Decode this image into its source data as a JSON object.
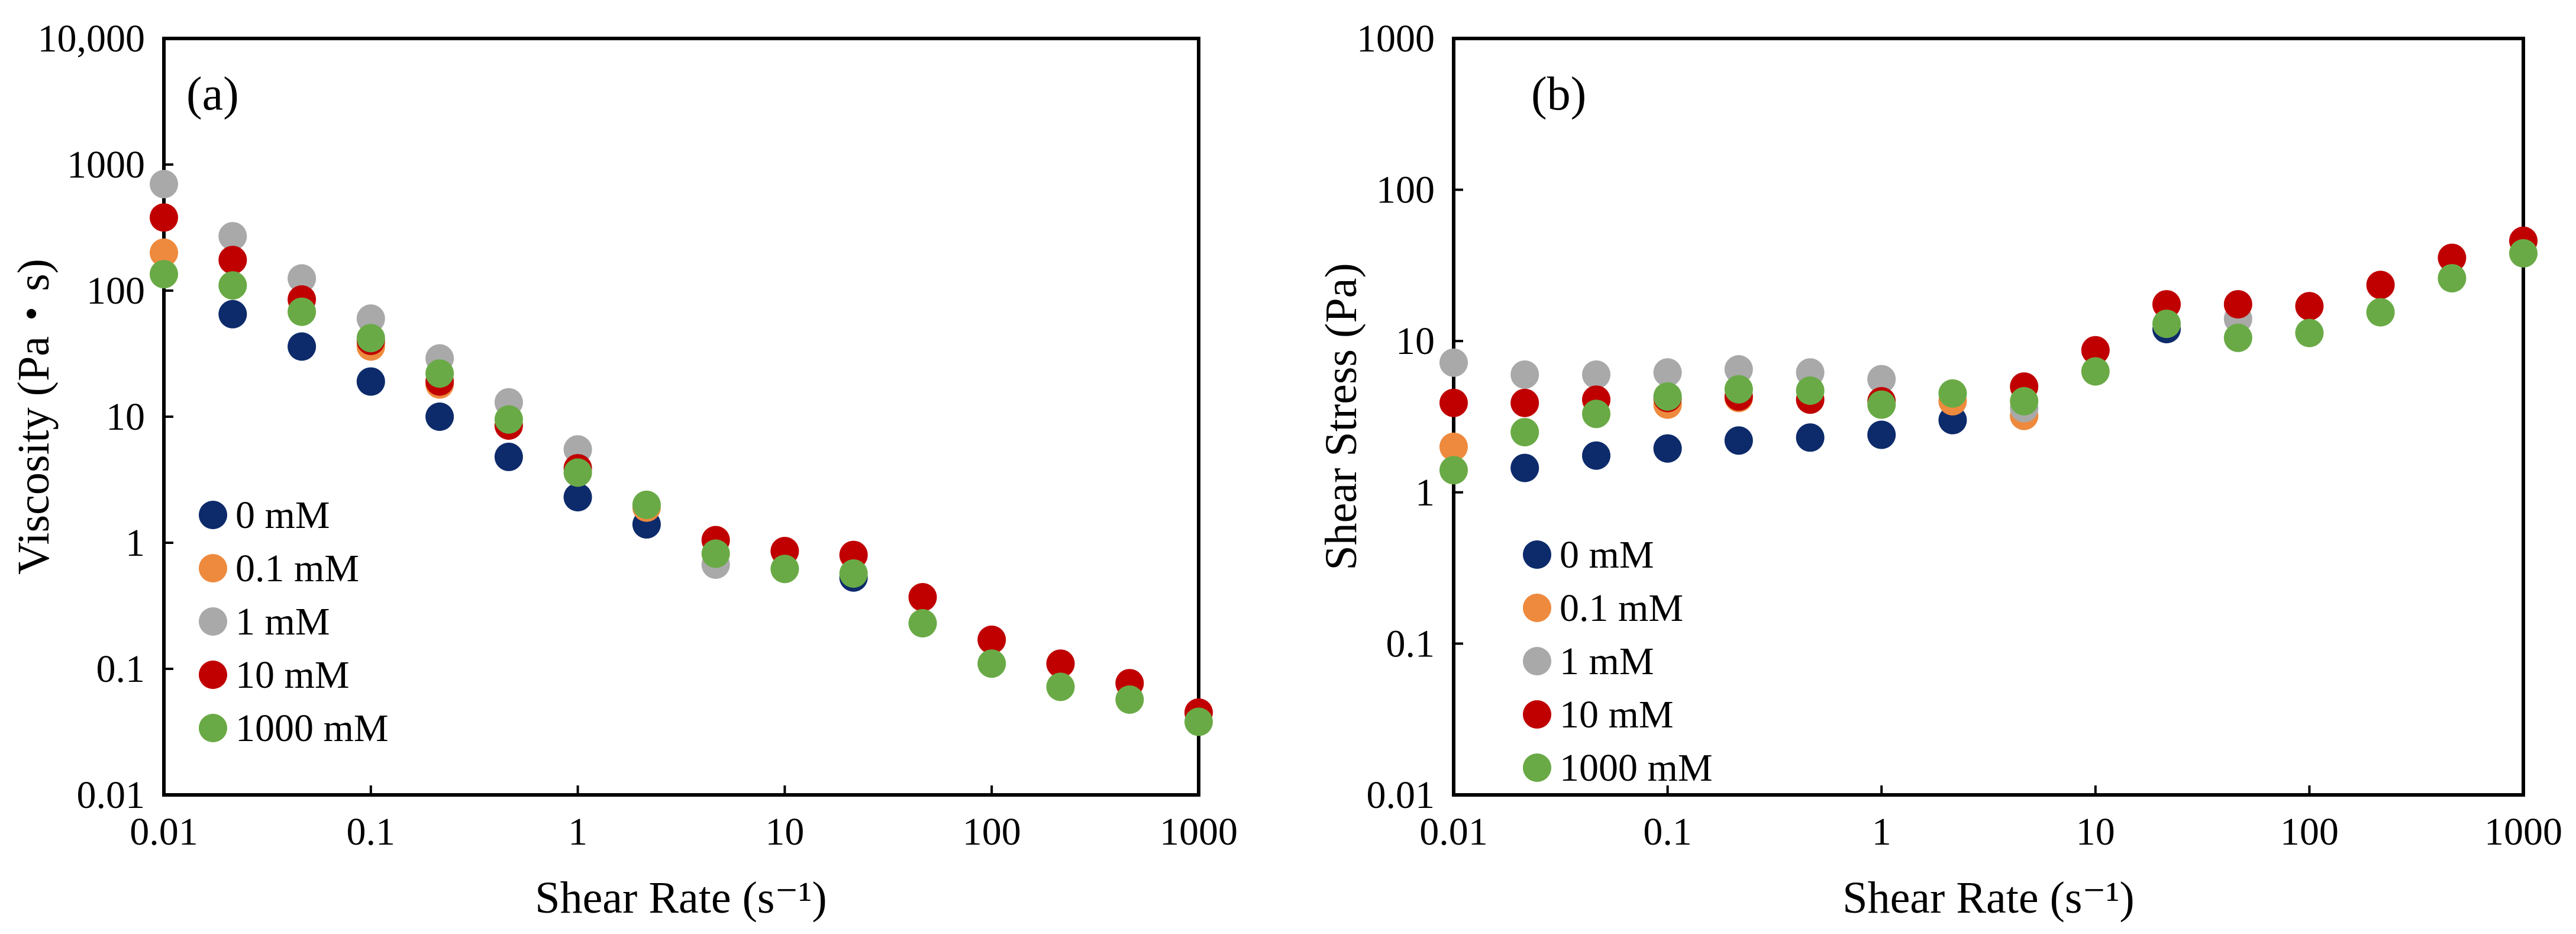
{
  "chart_data": [
    {
      "type": "scatter",
      "panel_label": "(a)",
      "xlabel": "Shear Rate (s⁻¹)",
      "ylabel": "Viscosity (Pa・s)",
      "xscale": "log",
      "yscale": "log",
      "xlim": [
        0.01,
        1000
      ],
      "ylim": [
        0.01,
        10000
      ],
      "x_tick_labels": [
        "0.01",
        "0.1",
        "1",
        "10",
        "100",
        "1000"
      ],
      "y_tick_labels": [
        "0.01",
        "0.1",
        "1",
        "10",
        "100",
        "1000",
        "10,000"
      ],
      "legend_position": "bottom-left",
      "x": [
        0.01,
        0.0215,
        0.0464,
        0.1,
        0.215,
        0.464,
        1,
        2.15,
        4.64,
        10,
        21.5,
        46.4,
        100,
        215,
        464,
        1000
      ],
      "series": [
        {
          "name": "0 mM",
          "color": "#0d2b6b",
          "values": [
            null,
            65,
            36,
            19,
            10,
            4.8,
            2.3,
            1.4,
            null,
            null,
            0.53,
            null,
            null,
            null,
            null,
            null
          ]
        },
        {
          "name": "0.1 mM",
          "color": "#ee8a3e",
          "values": [
            200,
            null,
            null,
            36,
            18,
            null,
            null,
            1.9,
            null,
            null,
            null,
            null,
            null,
            null,
            null,
            null
          ]
        },
        {
          "name": "1 mM",
          "color": "#a9a9a9",
          "values": [
            700,
            270,
            125,
            60,
            29,
            13,
            5.5,
            null,
            0.67,
            null,
            null,
            null,
            null,
            null,
            null,
            null
          ]
        },
        {
          "name": "10 mM",
          "color": "#c00000",
          "values": [
            380,
            175,
            85,
            40,
            19,
            8.5,
            3.9,
            null,
            1.05,
            0.86,
            0.8,
            0.37,
            0.17,
            0.11,
            0.077,
            0.045
          ]
        },
        {
          "name": "1000 mM",
          "color": "#6aaa46",
          "values": [
            135,
            110,
            68,
            42,
            22,
            9.5,
            3.6,
            2.0,
            0.82,
            0.62,
            0.57,
            0.23,
            0.11,
            0.072,
            0.057,
            0.038
          ]
        }
      ]
    },
    {
      "type": "scatter",
      "panel_label": "(b)",
      "xlabel": "Shear Rate (s⁻¹)",
      "ylabel": "Shear Stress (Pa)",
      "xscale": "log",
      "yscale": "log",
      "xlim": [
        0.01,
        1000
      ],
      "ylim": [
        0.01,
        1000
      ],
      "x_tick_labels": [
        "0.01",
        "0.1",
        "1",
        "10",
        "100",
        "1000"
      ],
      "y_tick_labels": [
        "0.01",
        "0.1",
        "1",
        "10",
        "100",
        "1000"
      ],
      "legend_position": "bottom-left",
      "x": [
        0.01,
        0.0215,
        0.0464,
        0.1,
        0.215,
        0.464,
        1,
        2.15,
        4.64,
        10,
        21.5,
        46.4,
        100,
        215,
        464,
        1000
      ],
      "series": [
        {
          "name": "0 mM",
          "color": "#0d2b6b",
          "values": [
            null,
            1.45,
            1.75,
            1.95,
            2.2,
            2.3,
            2.4,
            3.0,
            null,
            null,
            12,
            null,
            null,
            null,
            null,
            null
          ]
        },
        {
          "name": "0.1 mM",
          "color": "#ee8a3e",
          "values": [
            2.0,
            null,
            null,
            3.8,
            4.2,
            null,
            null,
            4.0,
            3.2,
            null,
            null,
            null,
            null,
            null,
            null,
            null
          ]
        },
        {
          "name": "1 mM",
          "color": "#a9a9a9",
          "values": [
            7.2,
            6.0,
            6.0,
            6.2,
            6.5,
            6.2,
            5.6,
            null,
            3.6,
            null,
            null,
            14,
            null,
            null,
            null,
            null
          ]
        },
        {
          "name": "10 mM",
          "color": "#c00000",
          "values": [
            3.9,
            3.9,
            4.1,
            4.2,
            4.3,
            4.1,
            4.0,
            null,
            5.0,
            8.7,
            17.5,
            17.5,
            17,
            23.5,
            35.5,
            46
          ]
        },
        {
          "name": "1000 mM",
          "color": "#6aaa46",
          "values": [
            1.4,
            2.5,
            3.3,
            4.3,
            4.8,
            4.7,
            3.8,
            4.5,
            4.0,
            6.3,
            13,
            10.5,
            11.3,
            15.5,
            26,
            38
          ]
        }
      ]
    }
  ]
}
